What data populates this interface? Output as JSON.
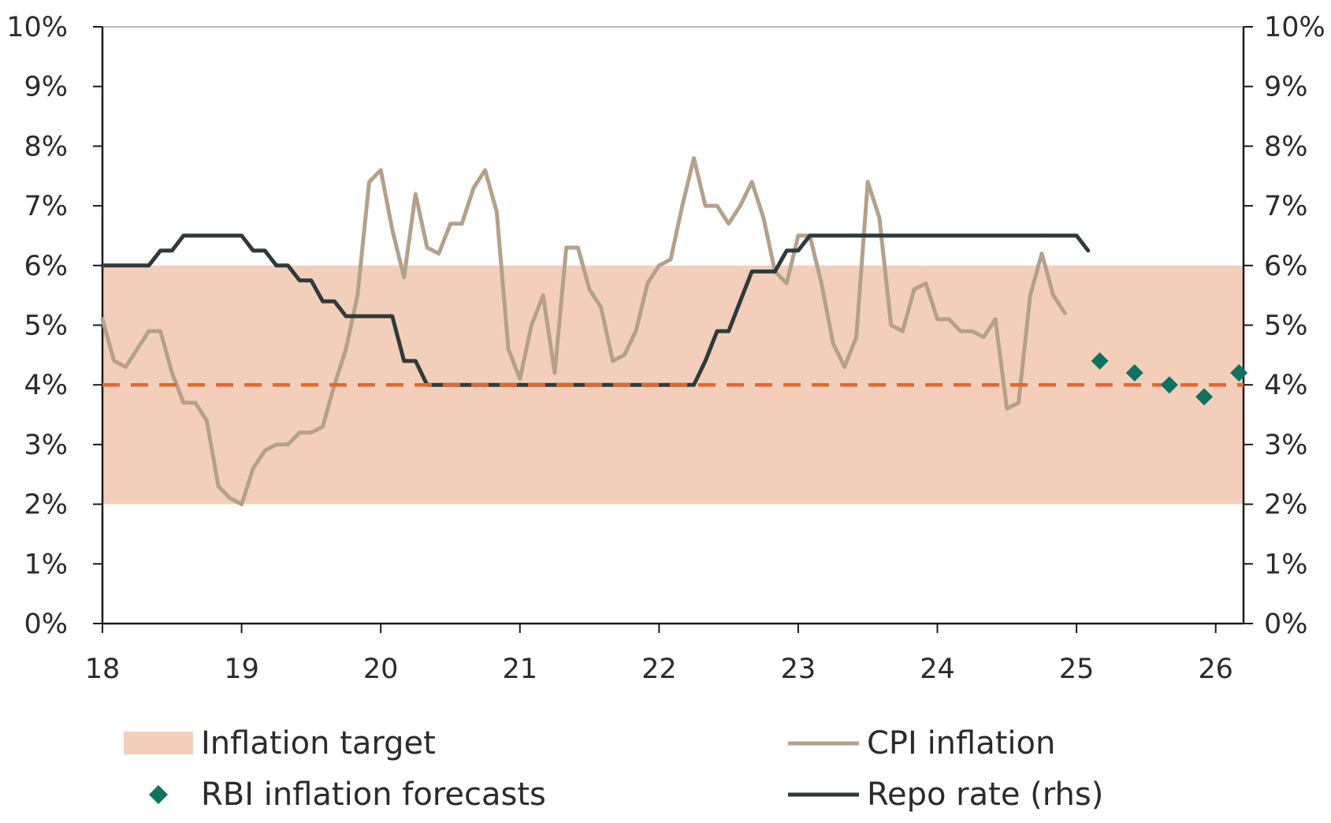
{
  "chart_data": {
    "type": "line",
    "x_axis": {
      "ticks": [
        "18",
        "19",
        "20",
        "21",
        "22",
        "23",
        "24",
        "25",
        "26"
      ],
      "range": [
        2018.0,
        2026.2
      ]
    },
    "y_left": {
      "ticks": [
        "0%",
        "1%",
        "2%",
        "3%",
        "4%",
        "5%",
        "6%",
        "7%",
        "8%",
        "9%",
        "10%"
      ],
      "range": [
        0,
        10
      ]
    },
    "y_right": {
      "ticks": [
        "0%",
        "1%",
        "2%",
        "3%",
        "4%",
        "5%",
        "6%",
        "7%",
        "8%",
        "9%",
        "10%"
      ],
      "range": [
        0,
        10
      ]
    },
    "grid": false,
    "legend_position": "bottom",
    "band": {
      "name": "Inflation target",
      "y_from": 2,
      "y_to": 6,
      "color": "#f3cfbb"
    },
    "target_line": {
      "y": 4,
      "style": "dashed",
      "color": "#e0692e"
    },
    "series": [
      {
        "name": "CPI inflation",
        "axis": "left",
        "color": "#b5a08a",
        "x": [
          2018.0,
          2018.083,
          2018.167,
          2018.25,
          2018.333,
          2018.417,
          2018.5,
          2018.583,
          2018.667,
          2018.75,
          2018.833,
          2018.917,
          2019.0,
          2019.083,
          2019.167,
          2019.25,
          2019.333,
          2019.417,
          2019.5,
          2019.583,
          2019.667,
          2019.75,
          2019.833,
          2019.917,
          2020.0,
          2020.083,
          2020.167,
          2020.25,
          2020.333,
          2020.417,
          2020.5,
          2020.583,
          2020.667,
          2020.75,
          2020.833,
          2020.917,
          2021.0,
          2021.083,
          2021.167,
          2021.25,
          2021.333,
          2021.417,
          2021.5,
          2021.583,
          2021.667,
          2021.75,
          2021.833,
          2021.917,
          2022.0,
          2022.083,
          2022.167,
          2022.25,
          2022.333,
          2022.417,
          2022.5,
          2022.583,
          2022.667,
          2022.75,
          2022.833,
          2022.917,
          2023.0,
          2023.083,
          2023.167,
          2023.25,
          2023.333,
          2023.417,
          2023.5,
          2023.583,
          2023.667,
          2023.75,
          2023.833,
          2023.917,
          2024.0,
          2024.083,
          2024.167,
          2024.25,
          2024.333,
          2024.417,
          2024.5,
          2024.583,
          2024.667,
          2024.75,
          2024.833,
          2024.917
        ],
        "values": [
          5.1,
          4.4,
          4.3,
          4.6,
          4.9,
          4.9,
          4.2,
          3.7,
          3.7,
          3.4,
          2.3,
          2.1,
          2.0,
          2.6,
          2.9,
          3.0,
          3.0,
          3.2,
          3.2,
          3.3,
          4.0,
          4.6,
          5.5,
          7.4,
          7.6,
          6.6,
          5.8,
          7.2,
          6.3,
          6.2,
          6.7,
          6.7,
          7.3,
          7.6,
          6.9,
          4.6,
          4.1,
          5.0,
          5.5,
          4.2,
          6.3,
          6.3,
          5.6,
          5.3,
          4.4,
          4.5,
          4.9,
          5.7,
          6.0,
          6.1,
          7.0,
          7.8,
          7.0,
          7.0,
          6.7,
          7.0,
          7.4,
          6.8,
          5.9,
          5.7,
          6.5,
          6.5,
          5.7,
          4.7,
          4.3,
          4.8,
          7.4,
          6.8,
          5.0,
          4.9,
          5.6,
          5.7,
          5.1,
          5.1,
          4.9,
          4.9,
          4.8,
          5.1,
          3.6,
          3.7,
          5.5,
          6.2,
          5.5,
          5.2
        ]
      },
      {
        "name": "Repo rate (rhs)",
        "axis": "right",
        "color": "#2f3a3d",
        "x": [
          2018.0,
          2018.333,
          2018.417,
          2018.5,
          2018.583,
          2018.667,
          2019.0,
          2019.083,
          2019.167,
          2019.25,
          2019.333,
          2019.417,
          2019.5,
          2019.583,
          2019.667,
          2019.75,
          2019.833,
          2020.083,
          2020.167,
          2020.25,
          2020.333,
          2020.417,
          2022.25,
          2022.333,
          2022.417,
          2022.5,
          2022.583,
          2022.667,
          2022.75,
          2022.833,
          2022.917,
          2023.0,
          2023.083,
          2024.917,
          2025.0,
          2025.083
        ],
        "values": [
          6.0,
          6.0,
          6.25,
          6.25,
          6.5,
          6.5,
          6.5,
          6.25,
          6.25,
          6.0,
          6.0,
          5.75,
          5.75,
          5.4,
          5.4,
          5.15,
          5.15,
          5.15,
          4.4,
          4.4,
          4.0,
          4.0,
          4.0,
          4.4,
          4.9,
          4.9,
          5.4,
          5.9,
          5.9,
          5.9,
          6.25,
          6.25,
          6.5,
          6.5,
          6.5,
          6.25
        ]
      },
      {
        "name": "RBI inflation forecasts",
        "axis": "left",
        "color": "#0f7360",
        "x": [
          2025.167,
          2025.417,
          2025.667,
          2025.917,
          2026.167
        ],
        "values": [
          4.4,
          4.2,
          4.0,
          3.8,
          4.2
        ]
      }
    ],
    "legend": [
      {
        "label": "Inflation target",
        "kind": "band"
      },
      {
        "label": "CPI inflation",
        "kind": "line"
      },
      {
        "label": "RBI inflation forecasts",
        "kind": "diamond"
      },
      {
        "label": "Repo rate (rhs)",
        "kind": "line"
      }
    ]
  }
}
